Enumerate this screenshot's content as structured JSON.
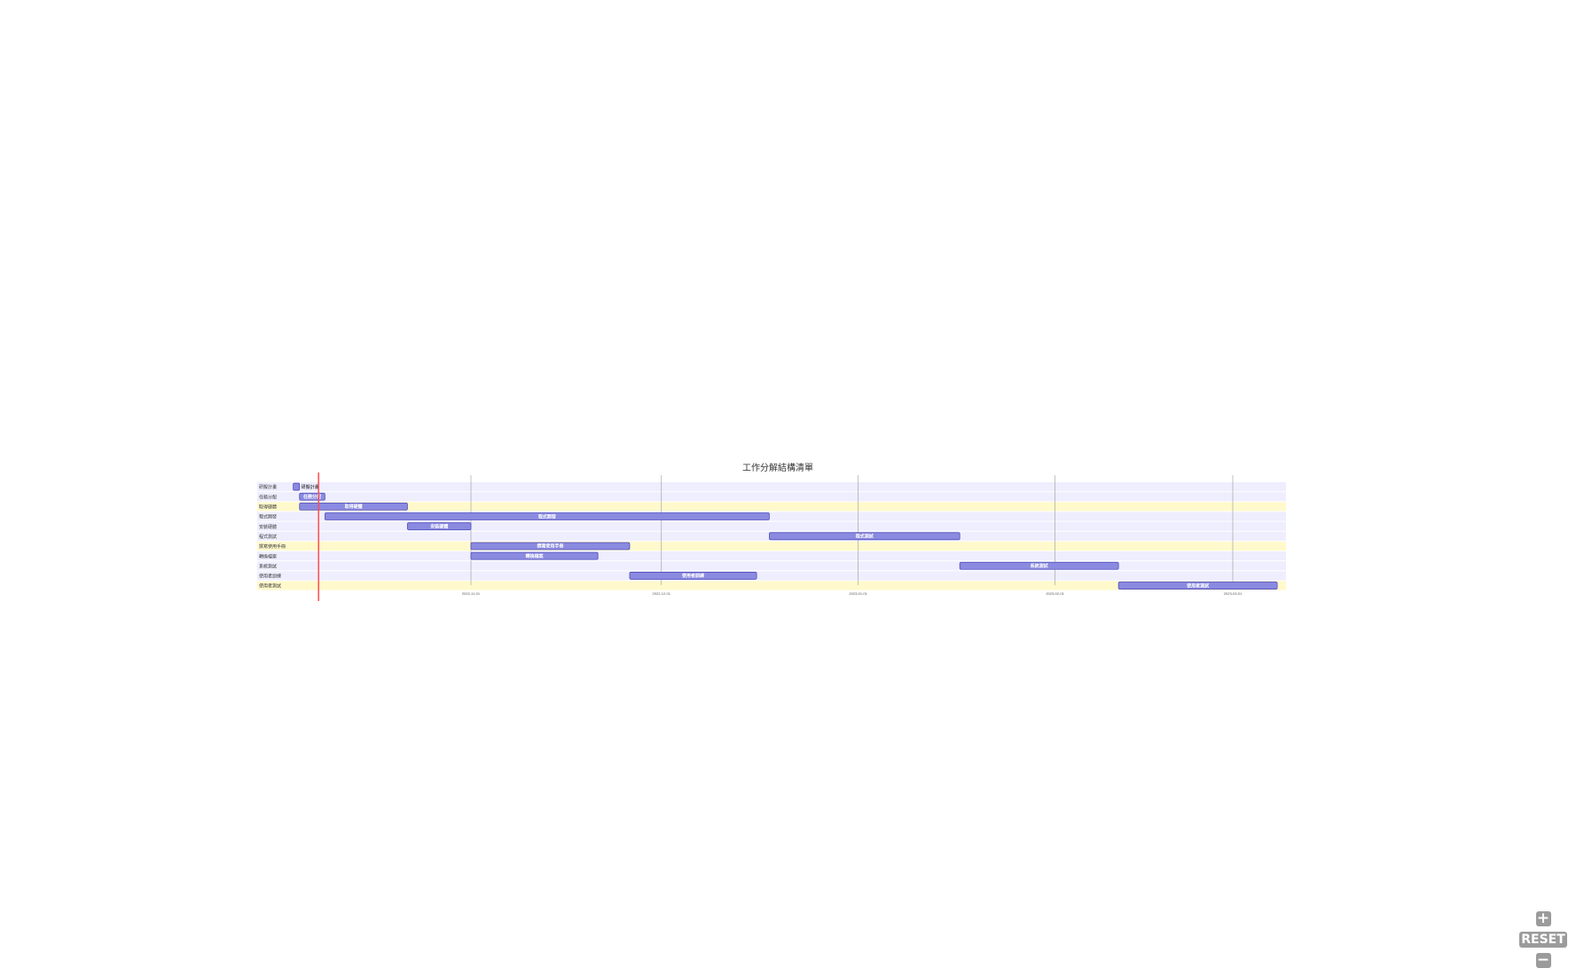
{
  "chart_data": {
    "type": "gantt",
    "title": "工作分解結構清單",
    "tick_labels": [
      "2022-11-01",
      "2022-12-01",
      "2023-01-01",
      "2023-02-01",
      "2023-03-01"
    ],
    "current_date": "2022-10-08",
    "tasks": [
      {
        "row": "研擬計畫",
        "label": "研擬計畫",
        "start": "2022-10-04",
        "end": "2022-10-05"
      },
      {
        "row": "任務分配",
        "label": "任務分配",
        "start": "2022-10-05",
        "end": "2022-10-09"
      },
      {
        "row": "取得硬體",
        "label": "取得硬體",
        "start": "2022-10-05",
        "end": "2022-10-22"
      },
      {
        "row": "程式開發",
        "label": "程式開發",
        "start": "2022-10-09",
        "end": "2022-12-18"
      },
      {
        "row": "安裝硬體",
        "label": "安裝硬體",
        "start": "2022-10-22",
        "end": "2022-11-01"
      },
      {
        "row": "程式測試",
        "label": "程式測試",
        "start": "2022-12-18",
        "end": "2023-01-17"
      },
      {
        "row": "撰寫使用手冊",
        "label": "撰寫使用手冊",
        "start": "2022-11-01",
        "end": "2022-11-26"
      },
      {
        "row": "轉換檔案",
        "label": "轉換檔案",
        "start": "2022-11-01",
        "end": "2022-11-21"
      },
      {
        "row": "系統測試",
        "label": "系統測試",
        "start": "2023-01-17",
        "end": "2023-02-11"
      },
      {
        "row": "使用者訓練",
        "label": "使用者訓練",
        "start": "2022-11-26",
        "end": "2022-12-16"
      },
      {
        "row": "使用者測試",
        "label": "使用者測試",
        "start": "2023-02-11",
        "end": "2023-03-08"
      }
    ],
    "colors": {
      "bar_fill": "#8a8ae0",
      "bar_stroke": "#534fbc",
      "section_band_a": "#eeeeff",
      "section_band_b": "#fff9cc",
      "today_line": "#ff4d4d",
      "grid_line": "#999999"
    }
  },
  "controls": {
    "zoom_in_label": "+",
    "reset_label": "RESET",
    "zoom_out_label": "−"
  }
}
